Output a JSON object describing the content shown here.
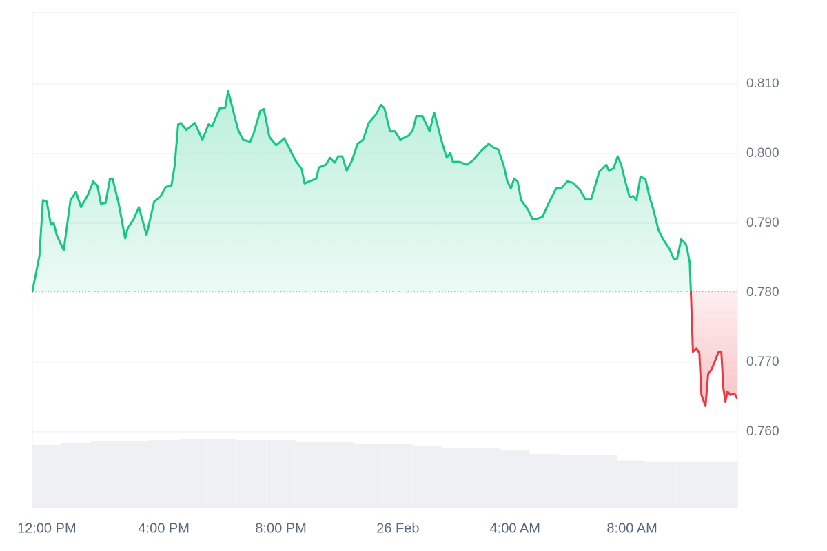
{
  "chart_data": {
    "type": "line",
    "x": [
      -0.49,
      -0.25,
      -0.13,
      0,
      0.14,
      0.24,
      0.34,
      0.58,
      0.81,
      1.0,
      1.17,
      1.41,
      1.59,
      1.73,
      1.85,
      2.01,
      2.16,
      2.25,
      2.46,
      2.68,
      2.77,
      2.96,
      3.15,
      3.41,
      3.67,
      3.88,
      4.07,
      4.26,
      4.37,
      4.49,
      4.58,
      4.77,
      5.06,
      5.32,
      5.53,
      5.65,
      5.91,
      6.1,
      6.2,
      6.43,
      6.54,
      6.71,
      6.95,
      7.07,
      7.3,
      7.42,
      7.61,
      7.84,
      8.12,
      8.26,
      8.5,
      8.71,
      8.81,
      8.97,
      9.21,
      9.3,
      9.54,
      9.68,
      9.84,
      9.96,
      10.1,
      10.25,
      10.43,
      10.62,
      10.81,
      11.0,
      11.26,
      11.42,
      11.54,
      11.73,
      11.9,
      12.08,
      12.37,
      12.51,
      12.63,
      12.84,
      13.08,
      13.24,
      13.5,
      13.67,
      13.79,
      13.88,
      14.11,
      14.35,
      14.56,
      14.8,
      15.1,
      15.29,
      15.43,
      15.62,
      15.74,
      15.86,
      15.97,
      16.09,
      16.21,
      16.42,
      16.61,
      16.8,
      16.94,
      17.13,
      17.41,
      17.6,
      17.79,
      17.98,
      18.22,
      18.41,
      18.6,
      18.74,
      18.88,
      19.12,
      19.21,
      19.37,
      19.51,
      19.63,
      19.77,
      19.92,
      20.03,
      20.15,
      20.29,
      20.46,
      20.6,
      20.72,
      20.91,
      21.09,
      21.28,
      21.42,
      21.54,
      21.68,
      21.85,
      21.97,
      22.01,
      22.08,
      22.2,
      22.3,
      22.37,
      22.51,
      22.6,
      22.72,
      22.96,
      23.05,
      23.12,
      23.19,
      23.26,
      23.36,
      23.5,
      23.6
    ],
    "values": [
      0.7802,
      0.7853,
      0.7933,
      0.7931,
      0.7898,
      0.79,
      0.7883,
      0.7861,
      0.7933,
      0.7945,
      0.7923,
      0.7941,
      0.796,
      0.7954,
      0.7928,
      0.7929,
      0.7964,
      0.7964,
      0.7928,
      0.7878,
      0.7893,
      0.7905,
      0.7923,
      0.7883,
      0.7931,
      0.7938,
      0.7952,
      0.7954,
      0.7982,
      0.8042,
      0.8044,
      0.8034,
      0.8044,
      0.802,
      0.8042,
      0.8039,
      0.8065,
      0.8066,
      0.809,
      0.8052,
      0.8034,
      0.802,
      0.8017,
      0.8029,
      0.8062,
      0.8064,
      0.8024,
      0.8012,
      0.8022,
      0.801,
      0.799,
      0.7978,
      0.7957,
      0.796,
      0.7964,
      0.798,
      0.7984,
      0.7994,
      0.7987,
      0.7996,
      0.7996,
      0.7975,
      0.799,
      0.8014,
      0.802,
      0.8044,
      0.8057,
      0.807,
      0.8065,
      0.8032,
      0.8032,
      0.802,
      0.8026,
      0.8034,
      0.8054,
      0.8054,
      0.8032,
      0.8059,
      0.8017,
      0.7994,
      0.8001,
      0.7988,
      0.7988,
      0.7984,
      0.799,
      0.8002,
      0.8014,
      0.8008,
      0.8006,
      0.7982,
      0.796,
      0.795,
      0.7964,
      0.796,
      0.7933,
      0.7921,
      0.7905,
      0.7907,
      0.7909,
      0.7927,
      0.795,
      0.7951,
      0.796,
      0.7958,
      0.7948,
      0.7934,
      0.7934,
      0.7954,
      0.7974,
      0.7984,
      0.7975,
      0.7979,
      0.7996,
      0.7984,
      0.796,
      0.7937,
      0.7939,
      0.7933,
      0.7967,
      0.7963,
      0.7937,
      0.7921,
      0.7889,
      0.7875,
      0.7863,
      0.7849,
      0.7849,
      0.7877,
      0.7869,
      0.7844,
      0.7801,
      0.7715,
      0.772,
      0.7713,
      0.7653,
      0.7637,
      0.7683,
      0.769,
      0.7715,
      0.7715,
      0.7663,
      0.7643,
      0.7658,
      0.7653,
      0.7655,
      0.7647
    ],
    "up_color": "#16c784",
    "down_color": "#ea3943",
    "xlim": [
      -0.49,
      23.6
    ],
    "xticks": [
      {
        "value": 0,
        "label": "12:00 PM"
      },
      {
        "value": 4,
        "label": "4:00 PM"
      },
      {
        "value": 8,
        "label": "8:00 PM"
      },
      {
        "value": 12,
        "label": "26 Feb"
      },
      {
        "value": 16,
        "label": "4:00 AM"
      },
      {
        "value": 20,
        "label": "8:00 AM"
      }
    ],
    "ylim": [
      0.7491,
      0.8203
    ],
    "yticks": [
      {
        "value": 0.76,
        "label": "0.760"
      },
      {
        "value": 0.77,
        "label": "0.770"
      },
      {
        "value": 0.78,
        "label": "0.780"
      },
      {
        "value": 0.79,
        "label": "0.790"
      },
      {
        "value": 0.8,
        "label": "0.800"
      },
      {
        "value": 0.81,
        "label": "0.810"
      }
    ],
    "grid": true,
    "volume": {
      "x": [
        -0.5,
        0.5,
        1.5,
        2.5,
        3.5,
        4.5,
        5.5,
        6.5,
        7.5,
        8.5,
        9.5,
        10.5,
        11.5,
        12.5,
        13.5,
        14.5,
        15.5,
        16.5,
        17.5,
        18.5,
        19.5,
        20.5,
        21.5,
        22.5,
        23.5
      ],
      "values": [
        92,
        95,
        97,
        97,
        99,
        101,
        101,
        99,
        99,
        96,
        96,
        93,
        93,
        91,
        87,
        87,
        84,
        79,
        77,
        77,
        69,
        67,
        67,
        67,
        67
      ],
      "color": "#eef0f4"
    }
  }
}
